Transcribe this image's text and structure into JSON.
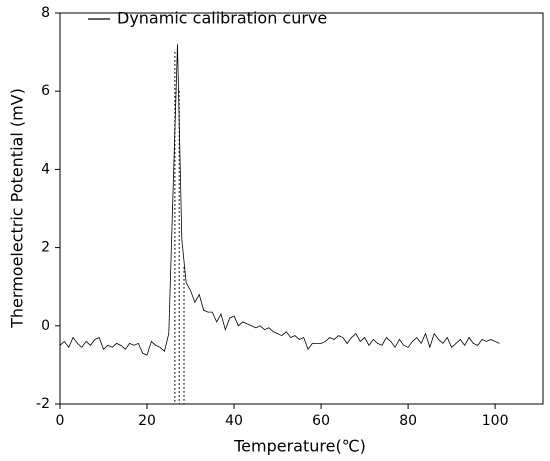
{
  "chart_data": {
    "type": "line",
    "xlabel": "Temperature(℃)",
    "ylabel": "Thermoelectric Potential (mV)",
    "series": [
      {
        "name": "Dynamic calibration curve",
        "color": "#000000",
        "x": [
          0,
          1,
          2,
          3,
          4,
          5,
          6,
          7,
          8,
          9,
          10,
          11,
          12,
          13,
          14,
          15,
          16,
          17,
          18,
          19,
          20,
          21,
          22,
          23,
          24,
          25,
          26,
          27,
          28,
          29,
          30,
          31,
          32,
          33,
          34,
          35,
          36,
          37,
          38,
          39,
          40,
          41,
          42,
          43,
          44,
          45,
          46,
          47,
          48,
          49,
          50,
          51,
          52,
          53,
          54,
          55,
          56,
          57,
          58,
          59,
          60,
          61,
          62,
          63,
          64,
          65,
          66,
          67,
          68,
          69,
          70,
          71,
          72,
          73,
          74,
          75,
          76,
          77,
          78,
          79,
          80,
          81,
          82,
          83,
          84,
          85,
          86,
          87,
          88,
          89,
          90,
          91,
          92,
          93,
          94,
          95,
          96,
          97,
          98,
          99,
          100,
          101
        ],
        "values": [
          -0.5,
          -0.4,
          -0.55,
          -0.3,
          -0.45,
          -0.55,
          -0.4,
          -0.5,
          -0.35,
          -0.3,
          -0.6,
          -0.5,
          -0.55,
          -0.45,
          -0.5,
          -0.6,
          -0.45,
          -0.5,
          -0.45,
          -0.7,
          -0.75,
          -0.4,
          -0.5,
          -0.55,
          -0.65,
          -0.2,
          3.5,
          7.2,
          2.2,
          1.1,
          0.9,
          0.6,
          0.8,
          0.4,
          0.35,
          0.35,
          0.1,
          0.3,
          -0.1,
          0.2,
          0.25,
          0.0,
          0.1,
          0.05,
          0.0,
          -0.05,
          0.0,
          -0.1,
          -0.05,
          -0.15,
          -0.2,
          -0.25,
          -0.15,
          -0.3,
          -0.25,
          -0.35,
          -0.3,
          -0.6,
          -0.45,
          -0.45,
          -0.45,
          -0.4,
          -0.3,
          -0.35,
          -0.25,
          -0.3,
          -0.45,
          -0.3,
          -0.2,
          -0.4,
          -0.3,
          -0.5,
          -0.35,
          -0.45,
          -0.5,
          -0.3,
          -0.4,
          -0.55,
          -0.35,
          -0.5,
          -0.55,
          -0.4,
          -0.3,
          -0.45,
          -0.2,
          -0.55,
          -0.2,
          -0.35,
          -0.45,
          -0.3,
          -0.55,
          -0.45,
          -0.35,
          -0.5,
          -0.3,
          -0.45,
          -0.5,
          -0.35,
          -0.4,
          -0.35,
          -0.4,
          -0.45
        ]
      }
    ],
    "reference_lines": [
      {
        "x": 26.4,
        "y": 7.0
      },
      {
        "x": 27.4,
        "y": 6.0
      },
      {
        "x": 28.5,
        "y": 1.5
      }
    ],
    "xlim": [
      0,
      111
    ],
    "ylim": [
      -2,
      8
    ],
    "xticks": [
      0,
      20,
      40,
      60,
      80,
      100
    ],
    "yticks": [
      -2,
      0,
      2,
      4,
      6,
      8
    ],
    "legend": "top-left"
  }
}
